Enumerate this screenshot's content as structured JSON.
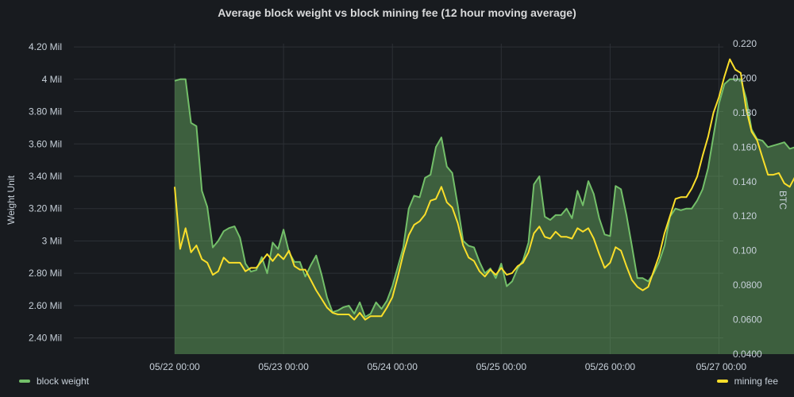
{
  "chart_data": {
    "type": "line",
    "title": "Average block weight vs block mining fee (12 hour moving average)",
    "xlabel": "",
    "ylabel_left": "Weight  Unit",
    "ylabel_right": "BTC",
    "x_ticks": [
      "05/22 00:00",
      "05/23 00:00",
      "05/24 00:00",
      "05/25 00:00",
      "05/26 00:00",
      "05/27 00:00"
    ],
    "y_left_ticks": [
      "2.40 Mil",
      "2.60 Mil",
      "2.80 Mil",
      "3 Mil",
      "3.20 Mil",
      "3.40 Mil",
      "3.60 Mil",
      "3.80 Mil",
      "4 Mil",
      "4.20 Mil"
    ],
    "y_right_ticks": [
      "0.0400",
      "0.0600",
      "0.0800",
      "0.100",
      "0.120",
      "0.140",
      "0.160",
      "0.180",
      "0.200",
      "0.220"
    ],
    "ylim_left_mil": [
      2.3,
      4.22
    ],
    "ylim_right_btc": [
      0.04,
      0.22
    ],
    "x_range_days": [
      "05/21 00:00",
      "05/27 00:00"
    ],
    "grid": true,
    "legend_position": "bottom",
    "series": [
      {
        "name": "block weight",
        "axis": "left",
        "unit": "Mil",
        "color": "#73bf69",
        "fill": "#73bf69",
        "points": [
          [
            2.0,
            3.99
          ],
          [
            2.1,
            4.0
          ],
          [
            2.2,
            4.0
          ],
          [
            2.3,
            3.73
          ],
          [
            2.4,
            3.71
          ],
          [
            2.5,
            3.31
          ],
          [
            2.6,
            3.21
          ],
          [
            2.7,
            2.96
          ],
          [
            2.8,
            3.0
          ],
          [
            2.9,
            3.06
          ],
          [
            3.0,
            3.08
          ],
          [
            3.1,
            3.09
          ],
          [
            3.2,
            3.02
          ],
          [
            3.3,
            2.86
          ],
          [
            3.4,
            2.81
          ],
          [
            3.5,
            2.82
          ],
          [
            3.6,
            2.9
          ],
          [
            3.7,
            2.8
          ],
          [
            3.8,
            2.99
          ],
          [
            3.9,
            2.95
          ],
          [
            4.0,
            3.07
          ],
          [
            4.1,
            2.93
          ],
          [
            4.2,
            2.87
          ],
          [
            4.3,
            2.87
          ],
          [
            4.4,
            2.78
          ],
          [
            4.5,
            2.85
          ],
          [
            4.6,
            2.91
          ],
          [
            4.7,
            2.79
          ],
          [
            4.8,
            2.65
          ],
          [
            4.9,
            2.56
          ],
          [
            5.0,
            2.57
          ],
          [
            5.1,
            2.59
          ],
          [
            5.2,
            2.6
          ],
          [
            5.3,
            2.55
          ],
          [
            5.4,
            2.62
          ],
          [
            5.5,
            2.53
          ],
          [
            5.6,
            2.55
          ],
          [
            5.7,
            2.62
          ],
          [
            5.8,
            2.58
          ],
          [
            5.9,
            2.63
          ],
          [
            6.0,
            2.72
          ],
          [
            6.1,
            2.84
          ],
          [
            6.2,
            2.96
          ],
          [
            6.3,
            3.2
          ],
          [
            6.4,
            3.28
          ],
          [
            6.5,
            3.27
          ],
          [
            6.6,
            3.39
          ],
          [
            6.7,
            3.41
          ],
          [
            6.8,
            3.58
          ],
          [
            6.9,
            3.64
          ],
          [
            7.0,
            3.46
          ],
          [
            7.1,
            3.42
          ],
          [
            7.2,
            3.22
          ],
          [
            7.3,
            3.0
          ],
          [
            7.4,
            2.97
          ],
          [
            7.5,
            2.96
          ],
          [
            7.6,
            2.87
          ],
          [
            7.7,
            2.8
          ],
          [
            7.8,
            2.83
          ],
          [
            7.9,
            2.77
          ],
          [
            8.0,
            2.86
          ],
          [
            8.1,
            2.72
          ],
          [
            8.2,
            2.75
          ],
          [
            8.3,
            2.83
          ],
          [
            8.4,
            2.88
          ],
          [
            8.5,
            2.99
          ],
          [
            8.6,
            3.35
          ],
          [
            8.7,
            3.4
          ],
          [
            8.8,
            3.15
          ],
          [
            8.9,
            3.13
          ],
          [
            9.0,
            3.16
          ],
          [
            9.1,
            3.16
          ],
          [
            9.2,
            3.2
          ],
          [
            9.3,
            3.14
          ],
          [
            9.4,
            3.31
          ],
          [
            9.5,
            3.22
          ],
          [
            9.6,
            3.37
          ],
          [
            9.7,
            3.29
          ],
          [
            9.8,
            3.14
          ],
          [
            9.9,
            3.04
          ],
          [
            10.0,
            3.03
          ],
          [
            10.1,
            3.34
          ],
          [
            10.2,
            3.32
          ],
          [
            10.3,
            3.16
          ],
          [
            10.4,
            2.97
          ],
          [
            10.5,
            2.77
          ],
          [
            10.6,
            2.77
          ],
          [
            10.7,
            2.75
          ],
          [
            10.8,
            2.8
          ],
          [
            10.9,
            2.87
          ],
          [
            11.0,
            2.97
          ],
          [
            11.1,
            3.15
          ],
          [
            11.2,
            3.2
          ],
          [
            11.3,
            3.19
          ],
          [
            11.4,
            3.2
          ],
          [
            11.5,
            3.2
          ],
          [
            11.6,
            3.25
          ],
          [
            11.7,
            3.32
          ],
          [
            11.8,
            3.45
          ],
          [
            11.9,
            3.65
          ],
          [
            12.0,
            3.85
          ],
          [
            12.1,
            3.97
          ],
          [
            12.2,
            4.0
          ],
          [
            12.3,
            4.0
          ],
          [
            12.4,
            4.0
          ],
          [
            12.5,
            3.88
          ],
          [
            12.6,
            3.69
          ],
          [
            12.7,
            3.63
          ],
          [
            12.8,
            3.62
          ],
          [
            12.9,
            3.58
          ],
          [
            13.0,
            3.59
          ],
          [
            13.1,
            3.6
          ],
          [
            13.2,
            3.61
          ],
          [
            13.3,
            3.57
          ],
          [
            13.4,
            3.58
          ],
          [
            13.5,
            3.52
          ],
          [
            13.6,
            3.53
          ],
          [
            13.7,
            3.48
          ],
          [
            13.8,
            3.48
          ],
          [
            13.9,
            3.53
          ],
          [
            14.0,
            3.67
          ],
          [
            14.1,
            3.74
          ],
          [
            14.2,
            3.58
          ],
          [
            14.3,
            3.61
          ],
          [
            14.4,
            3.58
          ],
          [
            14.5,
            3.5
          ],
          [
            14.6,
            3.46
          ],
          [
            14.7,
            3.37
          ],
          [
            14.8,
            3.16
          ],
          [
            14.9,
            2.96
          ],
          [
            15.0,
            2.9
          ],
          [
            15.1,
            2.91
          ],
          [
            15.2,
            2.77
          ],
          [
            15.3,
            2.66
          ],
          [
            15.4,
            2.8
          ],
          [
            15.5,
            2.81
          ],
          [
            15.6,
            2.68
          ],
          [
            15.7,
            2.73
          ],
          [
            15.8,
            2.75
          ],
          [
            15.9,
            2.8
          ],
          [
            16.0,
            2.9
          ],
          [
            16.1,
            3.28
          ],
          [
            16.2,
            3.36
          ],
          [
            16.3,
            3.38
          ],
          [
            16.4,
            3.38
          ],
          [
            16.5,
            3.59
          ]
        ]
      },
      {
        "name": "mining fee",
        "axis": "right",
        "unit": "BTC",
        "color": "#fade2a",
        "points": [
          [
            2.0,
            0.137
          ],
          [
            2.1,
            0.101
          ],
          [
            2.2,
            0.113
          ],
          [
            2.3,
            0.099
          ],
          [
            2.4,
            0.103
          ],
          [
            2.5,
            0.095
          ],
          [
            2.6,
            0.093
          ],
          [
            2.7,
            0.086
          ],
          [
            2.8,
            0.088
          ],
          [
            2.9,
            0.096
          ],
          [
            3.0,
            0.093
          ],
          [
            3.1,
            0.093
          ],
          [
            3.2,
            0.093
          ],
          [
            3.3,
            0.088
          ],
          [
            3.4,
            0.09
          ],
          [
            3.5,
            0.09
          ],
          [
            3.6,
            0.094
          ],
          [
            3.7,
            0.098
          ],
          [
            3.8,
            0.094
          ],
          [
            3.9,
            0.098
          ],
          [
            4.0,
            0.095
          ],
          [
            4.1,
            0.1
          ],
          [
            4.2,
            0.091
          ],
          [
            4.3,
            0.089
          ],
          [
            4.4,
            0.089
          ],
          [
            4.5,
            0.083
          ],
          [
            4.6,
            0.077
          ],
          [
            4.7,
            0.072
          ],
          [
            4.8,
            0.067
          ],
          [
            4.9,
            0.064
          ],
          [
            5.0,
            0.063
          ],
          [
            5.1,
            0.063
          ],
          [
            5.2,
            0.063
          ],
          [
            5.3,
            0.06
          ],
          [
            5.4,
            0.064
          ],
          [
            5.5,
            0.06
          ],
          [
            5.6,
            0.062
          ],
          [
            5.7,
            0.062
          ],
          [
            5.8,
            0.062
          ],
          [
            5.9,
            0.067
          ],
          [
            6.0,
            0.073
          ],
          [
            6.1,
            0.085
          ],
          [
            6.2,
            0.098
          ],
          [
            6.3,
            0.109
          ],
          [
            6.4,
            0.115
          ],
          [
            6.5,
            0.117
          ],
          [
            6.6,
            0.121
          ],
          [
            6.7,
            0.129
          ],
          [
            6.8,
            0.13
          ],
          [
            6.9,
            0.137
          ],
          [
            7.0,
            0.128
          ],
          [
            7.1,
            0.125
          ],
          [
            7.2,
            0.116
          ],
          [
            7.3,
            0.103
          ],
          [
            7.4,
            0.096
          ],
          [
            7.5,
            0.094
          ],
          [
            7.6,
            0.088
          ],
          [
            7.7,
            0.085
          ],
          [
            7.8,
            0.089
          ],
          [
            7.9,
            0.086
          ],
          [
            8.0,
            0.09
          ],
          [
            8.1,
            0.086
          ],
          [
            8.2,
            0.087
          ],
          [
            8.3,
            0.091
          ],
          [
            8.4,
            0.093
          ],
          [
            8.5,
            0.099
          ],
          [
            8.6,
            0.11
          ],
          [
            8.7,
            0.114
          ],
          [
            8.8,
            0.108
          ],
          [
            8.9,
            0.107
          ],
          [
            9.0,
            0.111
          ],
          [
            9.1,
            0.108
          ],
          [
            9.2,
            0.108
          ],
          [
            9.3,
            0.107
          ],
          [
            9.4,
            0.113
          ],
          [
            9.5,
            0.111
          ],
          [
            9.6,
            0.113
          ],
          [
            9.7,
            0.107
          ],
          [
            9.8,
            0.098
          ],
          [
            9.9,
            0.09
          ],
          [
            10.0,
            0.093
          ],
          [
            10.1,
            0.102
          ],
          [
            10.2,
            0.1
          ],
          [
            10.3,
            0.091
          ],
          [
            10.4,
            0.083
          ],
          [
            10.5,
            0.079
          ],
          [
            10.6,
            0.077
          ],
          [
            10.7,
            0.079
          ],
          [
            10.8,
            0.088
          ],
          [
            10.9,
            0.097
          ],
          [
            11.0,
            0.11
          ],
          [
            11.1,
            0.12
          ],
          [
            11.2,
            0.13
          ],
          [
            11.3,
            0.131
          ],
          [
            11.4,
            0.131
          ],
          [
            11.5,
            0.136
          ],
          [
            11.6,
            0.143
          ],
          [
            11.7,
            0.155
          ],
          [
            11.8,
            0.166
          ],
          [
            11.9,
            0.18
          ],
          [
            12.0,
            0.189
          ],
          [
            12.1,
            0.201
          ],
          [
            12.2,
            0.211
          ],
          [
            12.3,
            0.205
          ],
          [
            12.4,
            0.203
          ],
          [
            12.5,
            0.182
          ],
          [
            12.6,
            0.169
          ],
          [
            12.7,
            0.164
          ],
          [
            12.8,
            0.154
          ],
          [
            12.9,
            0.144
          ],
          [
            13.0,
            0.144
          ],
          [
            13.1,
            0.145
          ],
          [
            13.2,
            0.139
          ],
          [
            13.3,
            0.137
          ],
          [
            13.4,
            0.143
          ],
          [
            13.5,
            0.141
          ],
          [
            13.6,
            0.135
          ],
          [
            13.7,
            0.144
          ],
          [
            13.8,
            0.155
          ],
          [
            13.9,
            0.162
          ],
          [
            14.0,
            0.158
          ],
          [
            14.1,
            0.149
          ],
          [
            14.2,
            0.146
          ],
          [
            14.3,
            0.146
          ],
          [
            14.4,
            0.135
          ],
          [
            14.5,
            0.134
          ],
          [
            14.6,
            0.127
          ],
          [
            14.7,
            0.12
          ],
          [
            14.8,
            0.109
          ],
          [
            14.9,
            0.1
          ],
          [
            15.0,
            0.104
          ],
          [
            15.1,
            0.109
          ],
          [
            15.2,
            0.101
          ],
          [
            15.3,
            0.095
          ],
          [
            15.4,
            0.102
          ],
          [
            15.5,
            0.1
          ],
          [
            15.6,
            0.097
          ],
          [
            15.7,
            0.101
          ],
          [
            15.8,
            0.102
          ],
          [
            15.9,
            0.109
          ],
          [
            16.0,
            0.113
          ],
          [
            16.1,
            0.137
          ],
          [
            16.2,
            0.138
          ],
          [
            16.3,
            0.137
          ],
          [
            16.4,
            0.142
          ],
          [
            16.5,
            0.155
          ]
        ]
      }
    ]
  }
}
